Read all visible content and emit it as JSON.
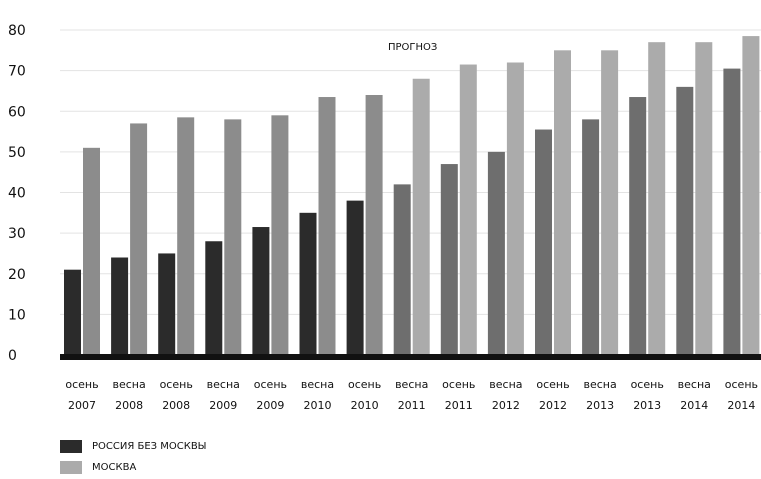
{
  "chart_data": {
    "type": "bar",
    "title": "",
    "xlabel": "",
    "ylabel": "",
    "ylim": [
      0,
      80
    ],
    "yticks": [
      "0",
      "10",
      "20",
      "30",
      "40",
      "50",
      "60",
      "70",
      "80"
    ],
    "grid": true,
    "legend_position": "bottom-left",
    "categories": [
      [
        "осень",
        "2007"
      ],
      [
        "весна",
        "2008"
      ],
      [
        "осень",
        "2008"
      ],
      [
        "весна",
        "2009"
      ],
      [
        "осень",
        "2009"
      ],
      [
        "весна",
        "2010"
      ],
      [
        "осень",
        "2010"
      ],
      [
        "весна",
        "2011"
      ],
      [
        "осень",
        "2011"
      ],
      [
        "весна",
        "2012"
      ],
      [
        "осень",
        "2012"
      ],
      [
        "весна",
        "2013"
      ],
      [
        "осень",
        "2013"
      ],
      [
        "весна",
        "2014"
      ],
      [
        "осень",
        "2014"
      ]
    ],
    "forecast_from_index": 7,
    "annotation": "ПРОГНОЗ",
    "series": [
      {
        "name": "РОССИЯ БЕЗ МОСКВЫ",
        "values": [
          21,
          24,
          25,
          28,
          31.5,
          35,
          38,
          42,
          47,
          50,
          55.5,
          58,
          63.5,
          66,
          70.5
        ],
        "color": "#2b2b2b",
        "forecast_color": "#6e6e6e"
      },
      {
        "name": "МОСКВА",
        "values": [
          51,
          57,
          58.5,
          58,
          59,
          63.5,
          64,
          68,
          71.5,
          72,
          75,
          75,
          77,
          77,
          78.5
        ],
        "color": "#8c8c8c",
        "forecast_color": "#ababab"
      }
    ]
  }
}
